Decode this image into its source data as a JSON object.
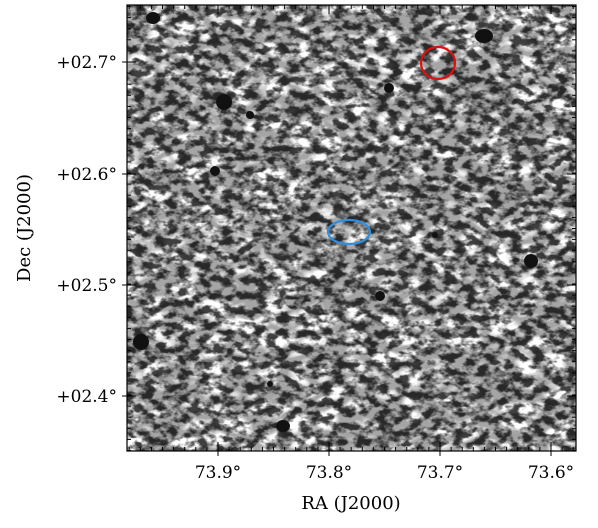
{
  "plot": {
    "xlabel": "RA (J2000)",
    "ylabel": "Dec (J2000)",
    "xticks": [
      "73.9°",
      "73.8°",
      "73.7°",
      "73.6°"
    ],
    "yticks": [
      "+02.7°",
      "+02.6°",
      "+02.5°",
      "+02.4°"
    ],
    "background_color": "#ffffff",
    "noise_color": "#000000"
  },
  "markers": {
    "red_ellipse_color": "#dd1111",
    "blue_ellipse_color": "#2f8fe0"
  }
}
